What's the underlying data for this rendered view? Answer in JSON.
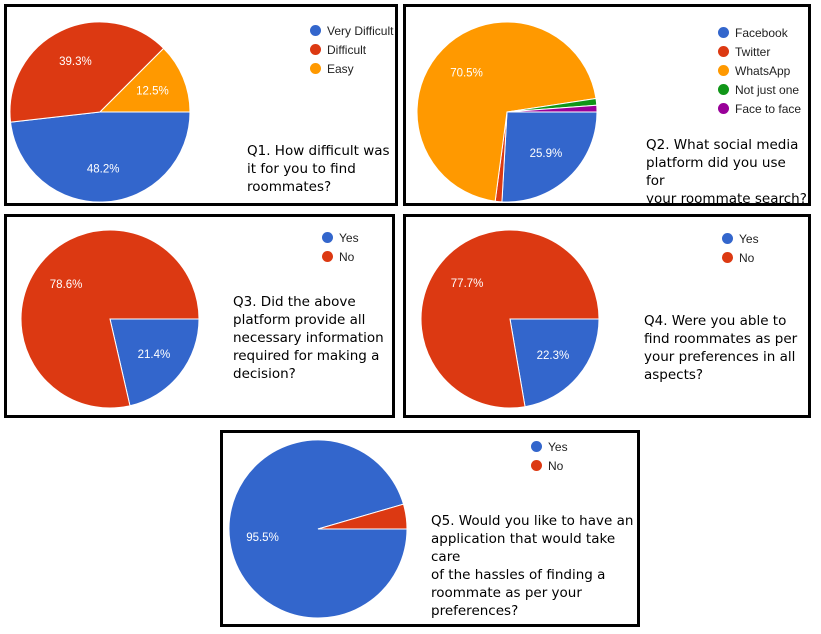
{
  "chart_data": [
    {
      "type": "pie",
      "question": "Q1. How difficult was it for you to find roommates?",
      "question_lines": [
        "Q1. How difficult was",
        "it for you to find",
        "roommates?"
      ],
      "slices": [
        {
          "name": "Very Difficult",
          "value": 48.2,
          "label": "48.2%",
          "color": "#3366cc"
        },
        {
          "name": "Difficult",
          "value": 39.3,
          "label": "39.3%",
          "color": "#dc3912"
        },
        {
          "name": "Easy",
          "value": 12.5,
          "label": "12.5%",
          "color": "#ff9900"
        }
      ],
      "legend_position": "top-right"
    },
    {
      "type": "pie",
      "question": "Q2. What social media platform did you use for your roommate search?",
      "question_lines": [
        "Q2. What social media",
        "platform did you use for",
        "your roommate search?"
      ],
      "slices": [
        {
          "name": "Facebook",
          "value": 25.9,
          "label": "25.9%",
          "color": "#3366cc"
        },
        {
          "name": "Twitter",
          "value": 1.2,
          "label": "",
          "color": "#dc3912"
        },
        {
          "name": "WhatsApp",
          "value": 70.5,
          "label": "70.5%",
          "color": "#ff9900"
        },
        {
          "name": "Not just one",
          "value": 1.2,
          "label": "",
          "color": "#109618"
        },
        {
          "name": "Face to face",
          "value": 1.2,
          "label": "",
          "color": "#990099"
        }
      ],
      "legend_position": "top-right"
    },
    {
      "type": "pie",
      "question": "Q3. Did the above platform provide all necessary information required for making a decision?",
      "question_lines": [
        "Q3. Did the above",
        "platform provide all",
        "necessary information",
        "required for making a",
        "decision?"
      ],
      "slices": [
        {
          "name": "Yes",
          "value": 21.4,
          "label": "21.4%",
          "color": "#3366cc"
        },
        {
          "name": "No",
          "value": 78.6,
          "label": "78.6%",
          "color": "#dc3912"
        }
      ],
      "legend_position": "top-right"
    },
    {
      "type": "pie",
      "question": "Q4. Were you able to find roommates as per your preferences in all aspects?",
      "question_lines": [
        "Q4. Were you able to",
        "find roommates as per",
        "your preferences in all",
        "aspects?"
      ],
      "slices": [
        {
          "name": "Yes",
          "value": 22.3,
          "label": "22.3%",
          "color": "#3366cc"
        },
        {
          "name": "No",
          "value": 77.7,
          "label": "77.7%",
          "color": "#dc3912"
        }
      ],
      "legend_position": "top-right"
    },
    {
      "type": "pie",
      "question": "Q5. Would you like to have an application that would take care of the hassles of finding a roommate as per your preferences?",
      "question_lines": [
        "Q5. Would you like to have an",
        "application that would take care",
        "of the hassles of finding a",
        "roommate as per your",
        "preferences?"
      ],
      "slices": [
        {
          "name": "Yes",
          "value": 95.5,
          "label": "95.5%",
          "color": "#3366cc"
        },
        {
          "name": "No",
          "value": 4.5,
          "label": "",
          "color": "#dc3912"
        }
      ],
      "legend_position": "top-right"
    }
  ]
}
